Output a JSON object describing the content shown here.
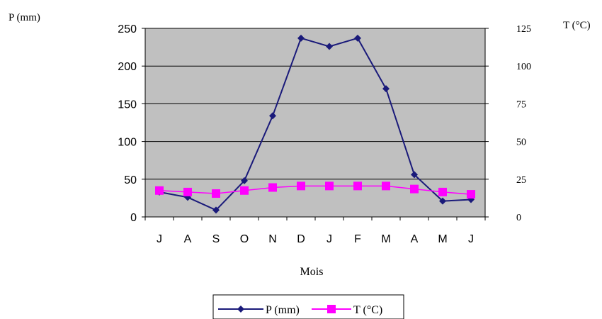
{
  "chart_data": {
    "type": "line",
    "categories": [
      "J",
      "A",
      "S",
      "O",
      "N",
      "D",
      "J",
      "F",
      "M",
      "A",
      "M",
      "J"
    ],
    "series": [
      {
        "name": "P (mm)",
        "axis": "left",
        "color": "#1a1a7a",
        "marker": "diamond",
        "values": [
          33,
          26,
          9,
          48,
          134,
          237,
          226,
          237,
          170,
          56,
          21,
          23
        ]
      },
      {
        "name": "T (°C)",
        "axis": "right",
        "color": "#ff00ff",
        "marker": "square",
        "values": [
          17.5,
          16.5,
          15.5,
          17.5,
          19.5,
          20.5,
          20.5,
          20.5,
          20.5,
          18.5,
          16.5,
          15
        ]
      }
    ],
    "ylabel_left": "P (mm)",
    "ylabel_right": "T (°C)",
    "xlabel": "Mois",
    "ylim_left": [
      0,
      250
    ],
    "ylim_right": [
      0,
      125
    ],
    "yticks_left": [
      0,
      50,
      100,
      150,
      200,
      250
    ],
    "yticks_right": [
      0,
      25,
      50,
      75,
      100,
      125
    ],
    "grid": true,
    "plot_background": "#c0c0c0",
    "legend_position": "bottom"
  }
}
